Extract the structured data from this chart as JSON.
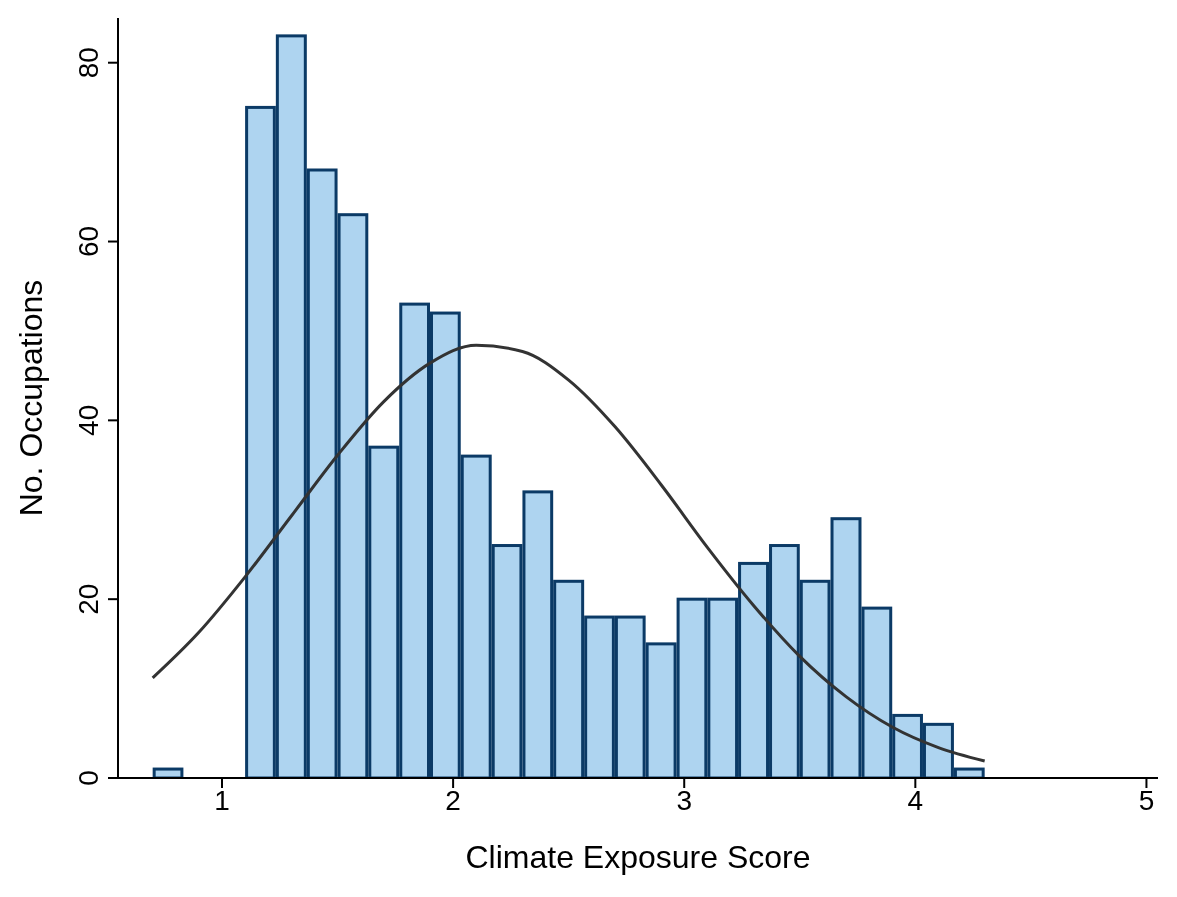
{
  "chart_data": {
    "type": "histogram",
    "xlabel": "Climate Exposure Score",
    "ylabel": "No. Occupations",
    "bins": [
      0.7,
      0.833,
      0.967,
      1.1,
      1.233,
      1.367,
      1.5,
      1.633,
      1.767,
      1.9,
      2.033,
      2.167,
      2.3,
      2.433,
      2.567,
      2.7,
      2.833,
      2.967,
      3.1,
      3.233,
      3.367,
      3.5,
      3.633,
      3.767,
      3.9,
      4.033,
      4.167,
      4.3
    ],
    "series": [
      {
        "color": "#aed4f0",
        "values": [
          1,
          0,
          0,
          75,
          83,
          68,
          63,
          37,
          53,
          52,
          36,
          26,
          32,
          22,
          18,
          18,
          15,
          20,
          20,
          24,
          26,
          22,
          29,
          19,
          7,
          6,
          1
        ]
      },
      {
        "type": "line",
        "color": "#333333",
        "x": [
          0.7,
          0.9,
          1.1,
          1.3,
          1.5,
          1.7,
          1.9,
          2.1,
          2.3,
          2.5,
          2.7,
          2.9,
          3.1,
          3.3,
          3.5,
          3.7,
          3.9,
          4.1,
          4.3
        ],
        "values": [
          11.2,
          16.3,
          22.5,
          29.3,
          36.1,
          42.1,
          46.4,
          48.4,
          47.7,
          44.5,
          39.3,
          32.8,
          25.8,
          19.3,
          13.6,
          9.1,
          5.7,
          3.4,
          1.9
        ]
      }
    ],
    "xlim": [
      0.55,
      5.05
    ],
    "ylim": [
      0,
      85
    ],
    "xticks": [
      1,
      2,
      3,
      4,
      5
    ],
    "yticks": [
      0,
      20,
      40,
      60,
      80
    ],
    "marker": "none",
    "line_style": "solid"
  }
}
